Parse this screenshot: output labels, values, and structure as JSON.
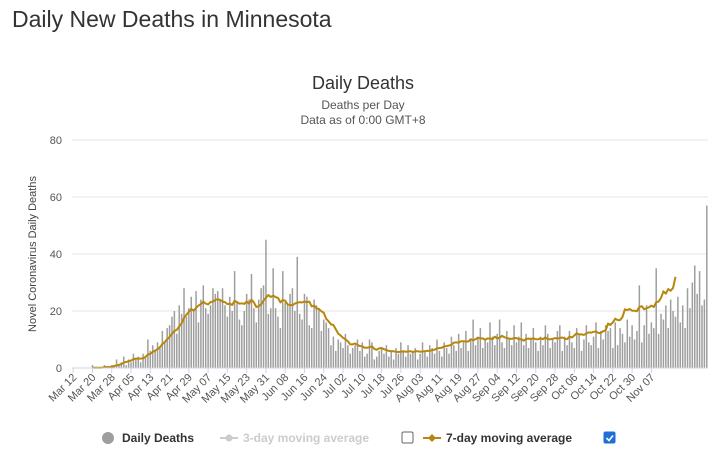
{
  "page": {
    "heading": "Daily New Deaths in Minnesota"
  },
  "chart_data": {
    "type": "bar",
    "title": "Daily Deaths",
    "subtitle": "Deaths per Day",
    "subtitle2": "Data as of 0:00 GMT+8",
    "ylabel": "Novel Coronavirus Daily Deaths",
    "xlabel": "",
    "ylim": [
      0,
      80
    ],
    "yticks": [
      0,
      20,
      40,
      60,
      80
    ],
    "grid": true,
    "x_tick_labels": [
      "Mar 12",
      "Mar 20",
      "Mar 28",
      "Apr 05",
      "Apr 13",
      "Apr 21",
      "Apr 29",
      "May 07",
      "May 15",
      "May 23",
      "May 31",
      "Jun 08",
      "Jun 16",
      "Jun 24",
      "Jul 02",
      "Jul 10",
      "Jul 18",
      "Jul 26",
      "Aug 03",
      "Aug 11",
      "Aug 19",
      "Aug 27",
      "Sep 04",
      "Sep 12",
      "Sep 20",
      "Sep 28",
      "Oct 06",
      "Oct 14",
      "Oct 22",
      "Oct 30",
      "Nov 07"
    ],
    "start_date": "2020-03-12",
    "series": [
      {
        "name": "Daily Deaths",
        "kind": "bar",
        "color": "#9e9e9e",
        "values": [
          0,
          0,
          0,
          0,
          0,
          0,
          0,
          0,
          1,
          0,
          0,
          0,
          0,
          1,
          0,
          0,
          1,
          1,
          3,
          1,
          2,
          4,
          1,
          3,
          2,
          5,
          3,
          4,
          2,
          5,
          4,
          10,
          6,
          8,
          6,
          9,
          7,
          13,
          9,
          14,
          15,
          18,
          20,
          12,
          22,
          19,
          28,
          18,
          21,
          25,
          20,
          27,
          16,
          24,
          29,
          21,
          19,
          22,
          28,
          26,
          27,
          24,
          28,
          22,
          18,
          25,
          20,
          34,
          23,
          17,
          15,
          20,
          26,
          24,
          33,
          21,
          16,
          24,
          28,
          29,
          45,
          19,
          21,
          35,
          21,
          18,
          14,
          34,
          23,
          22,
          26,
          28,
          20,
          39,
          19,
          17,
          26,
          25,
          15,
          14,
          24,
          22,
          21,
          13,
          17,
          16,
          14,
          8,
          11,
          6,
          10,
          9,
          7,
          12,
          8,
          5,
          7,
          8,
          10,
          6,
          9,
          4,
          5,
          10,
          9,
          3,
          4,
          6,
          7,
          5,
          8,
          4,
          6,
          3,
          7,
          5,
          9,
          6,
          4,
          8,
          5,
          6,
          7,
          3,
          5,
          9,
          6,
          4,
          8,
          7,
          5,
          10,
          6,
          4,
          9,
          7,
          5,
          11,
          8,
          6,
          12,
          7,
          9,
          13,
          6,
          10,
          17,
          8,
          11,
          14,
          7,
          10,
          9,
          16,
          11,
          8,
          12,
          17,
          9,
          7,
          13,
          10,
          8,
          15,
          9,
          11,
          16,
          8,
          12,
          7,
          10,
          14,
          9,
          6,
          11,
          8,
          15,
          12,
          7,
          10,
          9,
          13,
          15,
          6,
          11,
          8,
          13,
          9,
          7,
          14,
          12,
          6,
          10,
          15,
          9,
          8,
          11,
          16,
          7,
          13,
          10,
          15,
          13,
          14,
          7,
          16,
          8,
          14,
          12,
          9,
          17,
          11,
          15,
          10,
          13,
          29,
          9,
          15,
          22,
          12,
          16,
          14,
          35,
          12,
          19,
          17,
          22,
          14,
          24,
          20,
          18,
          25,
          16,
          22,
          14,
          28,
          21,
          30,
          36,
          26,
          34,
          22,
          24,
          57
        ]
      },
      {
        "name": "3-day moving average",
        "kind": "line",
        "color": "#cccccc",
        "visible": false
      },
      {
        "name": "7-day moving average",
        "kind": "line",
        "color": "#b8860b",
        "visible": true,
        "values": [
          0,
          0,
          0,
          0,
          0,
          0,
          0,
          0,
          0.1,
          0.1,
          0.1,
          0.1,
          0.1,
          0.3,
          0.3,
          0.3,
          0.4,
          0.7,
          0.9,
          1.1,
          1.4,
          1.9,
          2.1,
          2.4,
          2.6,
          3.1,
          3.3,
          3.3,
          3.3,
          3.4,
          3.9,
          4.7,
          5,
          5.6,
          6.1,
          6.6,
          7.3,
          8.4,
          9.1,
          10.1,
          10.9,
          12,
          13,
          13.4,
          14.6,
          15.6,
          17.6,
          18.7,
          19.7,
          20.7,
          20.1,
          21.1,
          21.9,
          22.4,
          23.3,
          22.6,
          22.3,
          23.1,
          23.3,
          23.9,
          24.1,
          23.9,
          23.3,
          23.1,
          22.4,
          22.6,
          22.1,
          23.6,
          23.1,
          22.6,
          22.7,
          22.5,
          23.3,
          22.6,
          24,
          23,
          21.4,
          21.7,
          22.3,
          23.6,
          24.6,
          25.6,
          24.9,
          25.4,
          24.9,
          24.6,
          23,
          23.9,
          23.6,
          22.3,
          22.1,
          22,
          22.6,
          22.9,
          23.1,
          23,
          23.3,
          23.1,
          23.3,
          21.6,
          21.9,
          20.9,
          20.7,
          19.9,
          19.4,
          17.3,
          16.4,
          15.3,
          15.1,
          13.6,
          12.1,
          11.4,
          10.6,
          10.1,
          9.4,
          8.3,
          8.3,
          8.6,
          8.1,
          7.7,
          7.6,
          7.1,
          7.1,
          7.3,
          7.6,
          6.7,
          6.4,
          6.9,
          7,
          6.6,
          6.3,
          6,
          5.9,
          5.9,
          5.7,
          5.6,
          5.7,
          5.9,
          5.7,
          5.8,
          5.9,
          5.6,
          5.9,
          5.9,
          5.7,
          5.8,
          5.9,
          6,
          6,
          6.3,
          6.4,
          6.9,
          7,
          7.1,
          7.6,
          7.7,
          7.9,
          8.1,
          8.9,
          9,
          8.9,
          9.4,
          9.4,
          9.3,
          9.3,
          10.1,
          9.7,
          10.1,
          10.6,
          10.4,
          10.4,
          9.9,
          10.4,
          10.3,
          10.1,
          11,
          10.4,
          10.6,
          11.3,
          10.8,
          10.5,
          10.3,
          10.2,
          10.5,
          10.5,
          10.1,
          10.1,
          9.6,
          10.2,
          10.3,
          10.2,
          10.4,
          10.1,
          10.1,
          10.4,
          10.1,
          10.8,
          10.1,
          10.1,
          10.2,
          10.5,
          10.4,
          10.5,
          10.7,
          10.3,
          10.1,
          11,
          10.7,
          11.4,
          12.2,
          11.8,
          11.8,
          11.6,
          12.1,
          12.5,
          12.4,
          12.7,
          12.8,
          12.3,
          12.3,
          12.9,
          13.2,
          15.6,
          15.1,
          16,
          17.3,
          16.8,
          16.8,
          17.9,
          20.6,
          20.3,
          20.7,
          20.1,
          20.1,
          19.9,
          21.4,
          21.7,
          20.6,
          21,
          21.3,
          21.9,
          21.4,
          23.1,
          23.3,
          24.6,
          26.9,
          26.1,
          27.7,
          27.1,
          28.1,
          32
        ]
      }
    ],
    "legend": {
      "position": "bottom",
      "items": [
        {
          "label": "Daily Deaths",
          "color": "#333333",
          "marker_color": "#9e9e9e",
          "checkbox": null
        },
        {
          "label": "3-day moving average",
          "color": "#cccccc",
          "marker_color": "#cccccc",
          "checkbox": false
        },
        {
          "label": "7-day moving average",
          "color": "#333333",
          "marker_color": "#b8860b",
          "checkbox": true
        }
      ]
    }
  }
}
